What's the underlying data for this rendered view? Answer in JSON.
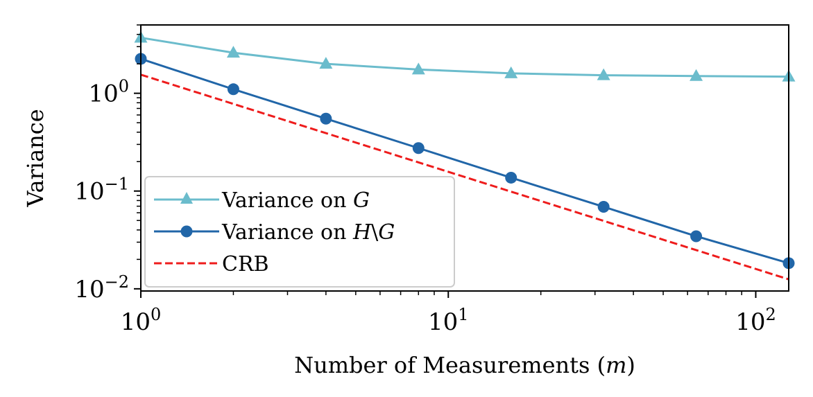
{
  "chart_data": {
    "type": "line",
    "xscale": "log",
    "yscale": "log",
    "xlim": [
      1,
      128
    ],
    "ylim": [
      0.0095,
      5.0
    ],
    "xlabel": "Number of Measurements (m)",
    "ylabel": "Variance",
    "grid": false,
    "legend_placement": "lower-left",
    "x_ticks": [
      {
        "value": 1,
        "base": "10",
        "exp": "0"
      },
      {
        "value": 10,
        "base": "10",
        "exp": "1"
      },
      {
        "value": 100,
        "base": "10",
        "exp": "2"
      }
    ],
    "y_ticks": [
      {
        "value": 0.01,
        "base": "10",
        "exp": "−2"
      },
      {
        "value": 0.1,
        "base": "10",
        "exp": "−1"
      },
      {
        "value": 1,
        "base": "10",
        "exp": "0"
      }
    ],
    "series": [
      {
        "name": "Variance on G",
        "color": "#6bbccc",
        "marker": "triangle",
        "dashed": false,
        "x": [
          1,
          2,
          4,
          8,
          16,
          32,
          64,
          128
        ],
        "y": [
          3.7,
          2.6,
          2.0,
          1.75,
          1.6,
          1.53,
          1.5,
          1.48
        ]
      },
      {
        "name": "Variance on H\\G",
        "color": "#2166a8",
        "marker": "circle",
        "dashed": false,
        "x": [
          1,
          2,
          4,
          8,
          16,
          32,
          64,
          128
        ],
        "y": [
          2.25,
          1.1,
          0.55,
          0.275,
          0.137,
          0.069,
          0.0345,
          0.0183
        ]
      },
      {
        "name": "CRB",
        "color": "#ee1c1c",
        "marker": "none",
        "dashed": true,
        "x": [
          1,
          128
        ],
        "y": [
          1.55,
          0.0125
        ]
      }
    ]
  }
}
